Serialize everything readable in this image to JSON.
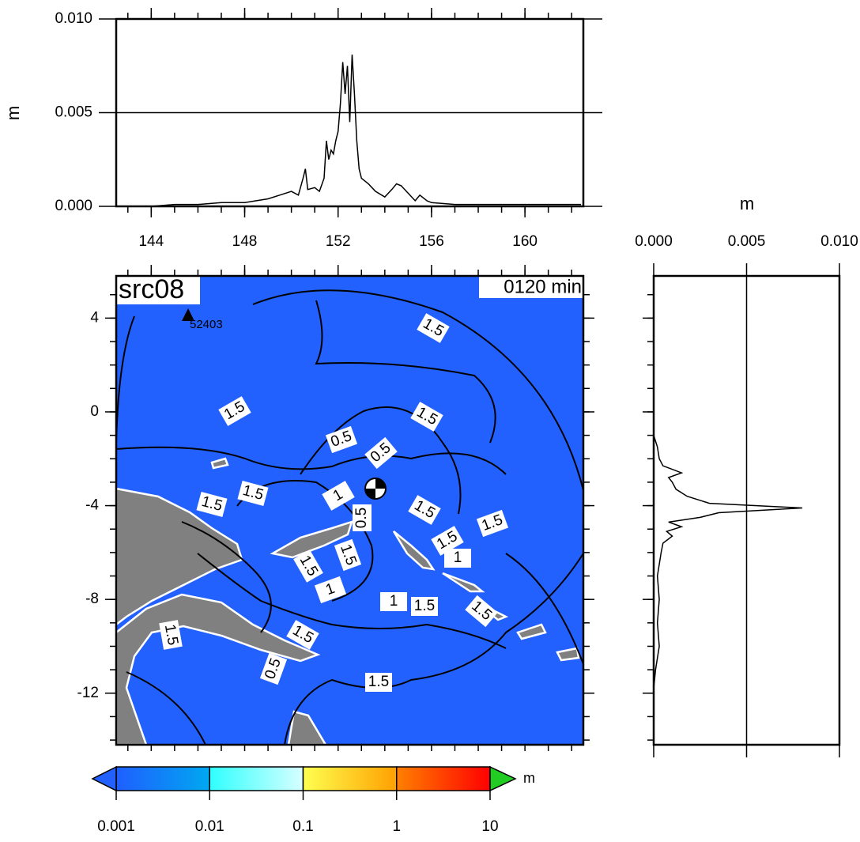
{
  "chart_data": [
    {
      "type": "line",
      "ylabel": "m",
      "x": [
        144,
        145,
        146,
        147,
        148,
        148.5,
        149,
        149.5,
        150,
        150.3,
        150.5,
        150.6,
        150.7,
        151,
        151.2,
        151.4,
        151.5,
        151.6,
        151.7,
        151.8,
        151.9,
        152,
        152.1,
        152.2,
        152.3,
        152.4,
        152.5,
        152.6,
        152.7,
        152.8,
        152.9,
        153,
        153.3,
        153.6,
        154,
        154.3,
        154.5,
        154.7,
        155,
        155.3,
        155.5,
        155.8,
        156,
        157,
        158,
        160,
        162.4
      ],
      "values": [
        0,
        0.0001,
        0.0001,
        0.0002,
        0.0002,
        0.0003,
        0.0004,
        0.0006,
        0.0008,
        0.0006,
        0.0015,
        0.002,
        0.0009,
        0.001,
        0.0008,
        0.0015,
        0.0035,
        0.0025,
        0.003,
        0.0028,
        0.0035,
        0.004,
        0.0055,
        0.0077,
        0.006,
        0.0075,
        0.0045,
        0.0081,
        0.006,
        0.0035,
        0.002,
        0.0015,
        0.0012,
        0.0008,
        0.0005,
        0.0009,
        0.0012,
        0.0011,
        0.0007,
        0.0003,
        0.0006,
        0.0003,
        0.0002,
        0.0001,
        0.0001,
        0.0001,
        0.0001
      ],
      "color": "#000000",
      "xlim": [
        142.5,
        162.5
      ],
      "xticks": [
        144,
        148,
        152,
        156,
        160
      ],
      "ylim": [
        0,
        0.01
      ],
      "yticks": [
        {
          "value": 0,
          "label": "0.000"
        },
        {
          "value": 0.005,
          "label": "0.005"
        },
        {
          "value": 0.01,
          "label": "0.010"
        }
      ],
      "grid": true
    },
    {
      "type": "line",
      "orientation": "vertical",
      "xlabel": "m",
      "y": [
        -1,
        -1.5,
        -2,
        -2.3,
        -2.6,
        -2.8,
        -3,
        -3.3,
        -3.6,
        -3.9,
        -4.1,
        -4.3,
        -4.5,
        -4.7,
        -4.9,
        -5.1,
        -5.3,
        -5.6,
        -6,
        -6.5,
        -7,
        -8,
        -9,
        -10,
        -11,
        -11.8
      ],
      "values": [
        0,
        0.0002,
        0.0003,
        0.0005,
        0.0015,
        0.0008,
        0.001,
        0.0012,
        0.0018,
        0.003,
        0.008,
        0.0035,
        0.0025,
        0.0008,
        0.0015,
        0.0007,
        0.001,
        0.0005,
        0.0004,
        0.0003,
        0.0002,
        0.0003,
        0.0002,
        0.0003,
        0.0001,
        0
      ],
      "color": "#000000",
      "xlim": [
        0,
        0.01
      ],
      "xticks": [
        {
          "value": 0,
          "label": "0.000"
        },
        {
          "value": 0.005,
          "label": "0.005"
        },
        {
          "value": 0.01,
          "label": "0.010"
        }
      ],
      "ylim": [
        -14.2,
        5.8
      ],
      "grid": true
    },
    {
      "type": "map",
      "title": "src08",
      "time_label": "0120 min",
      "station": "52403",
      "ocean_color": "#2361ff",
      "land_color": "#808080",
      "xlim": [
        142.5,
        162.5
      ],
      "ylim": [
        -14.2,
        5.8
      ],
      "yticks": [
        4,
        0,
        -4,
        -8,
        -12
      ],
      "contour_labels": [
        "1.5",
        "1.5",
        "1.5",
        "0.5",
        "0.5",
        "1.5",
        "1.5",
        "1",
        "1.5",
        "1.5",
        "1.5",
        "1",
        "1.5",
        "1.5",
        "1",
        "1",
        "1.5",
        "1.5",
        "1.5",
        "1.5",
        "0.5",
        "1.5",
        "0.5"
      ],
      "colorbar": {
        "unit": "m",
        "log": true,
        "ticks": [
          0.001,
          0.01,
          0.1,
          1,
          10
        ],
        "colors": [
          [
            "#1f5fff",
            "#00a8f0"
          ],
          [
            "#30ffff",
            "#d8ffff"
          ],
          [
            "#ffff50",
            "#ffa000"
          ],
          [
            "#ff8000",
            "#ff0000"
          ]
        ],
        "under_color": "#2361ff",
        "over_color": "#22cc22"
      }
    }
  ]
}
